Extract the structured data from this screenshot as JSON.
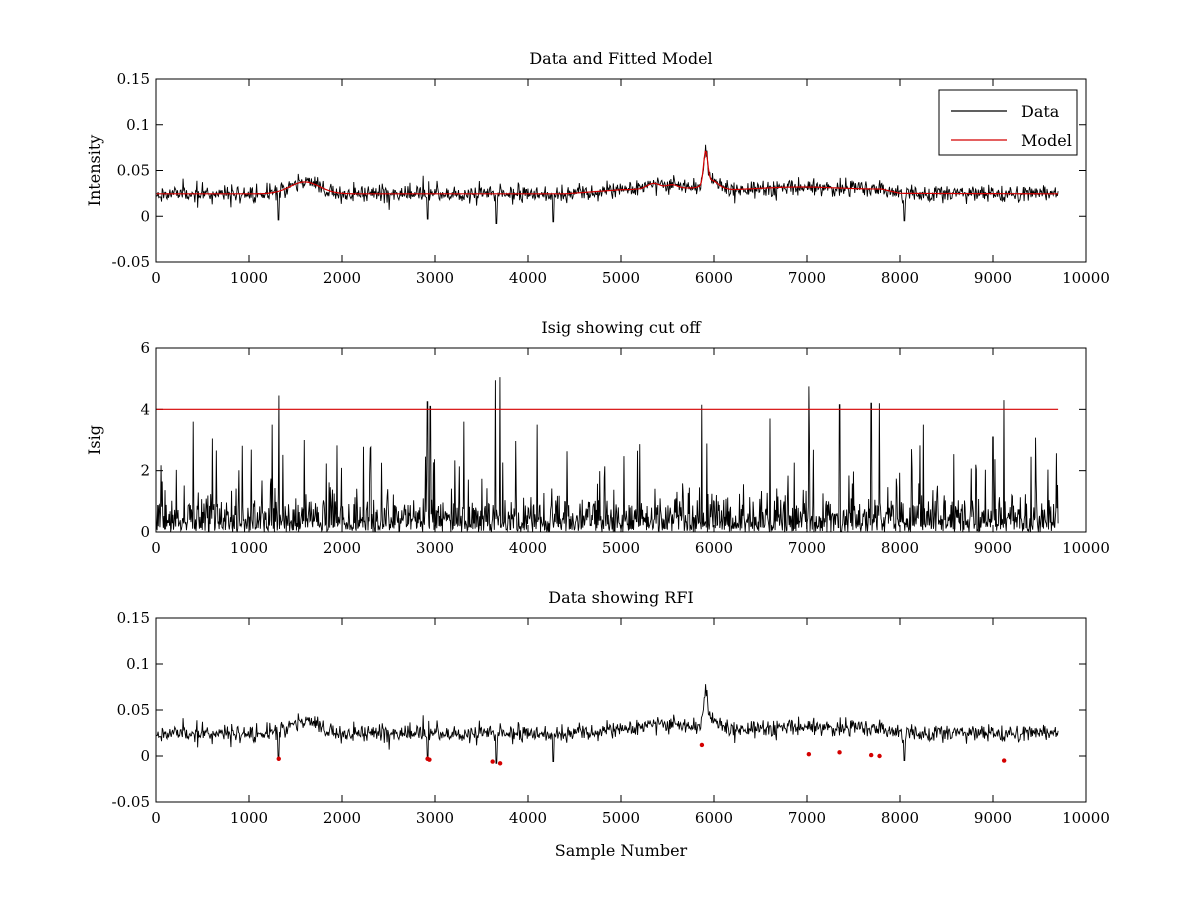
{
  "chart_data": [
    {
      "id": "top",
      "type": "line",
      "title": "Data and Fitted Model",
      "xlabel": "",
      "ylabel": "Intensity",
      "xlim": [
        0,
        10000
      ],
      "ylim": [
        -0.05,
        0.15
      ],
      "xticks": [
        0,
        1000,
        2000,
        3000,
        4000,
        5000,
        6000,
        7000,
        8000,
        9000,
        10000
      ],
      "xtick_labels": [
        "0",
        "1000",
        "2000",
        "3000",
        "4000",
        "5000",
        "6000",
        "7000",
        "8000",
        "9000",
        "10000"
      ],
      "yticks": [
        -0.05,
        0,
        0.05,
        0.1,
        0.15
      ],
      "ytick_labels": [
        "-0.05",
        "0",
        "0.05",
        "0.1",
        "0.15"
      ],
      "legend": {
        "placement": "top-right",
        "entries": [
          {
            "label": "Data",
            "color": "#000000"
          },
          {
            "label": "Model",
            "color": "#d40000"
          }
        ]
      },
      "series": [
        {
          "name": "Data",
          "color": "#000000",
          "style": "noisy-line",
          "x_range": [
            0,
            9700
          ],
          "baseline_ref": "model",
          "noise_amplitude": 0.0085,
          "points": 1300,
          "seed": 11,
          "dips": [
            [
              1320,
              -0.004
            ],
            [
              2920,
              -0.003
            ],
            [
              3660,
              -0.008
            ],
            [
              4270,
              -0.006
            ],
            [
              8050,
              -0.005
            ]
          ]
        },
        {
          "name": "Model",
          "color": "#d40000",
          "style": "line",
          "baseline_ref": "model"
        }
      ],
      "model_baseline": {
        "base": 0.0245,
        "slope_segments": [
          [
            0,
            0.0245
          ],
          [
            4400,
            0.0245
          ],
          [
            5000,
            0.029
          ],
          [
            5800,
            0.031
          ],
          [
            6000,
            0.031
          ],
          [
            6200,
            0.0285
          ],
          [
            7800,
            0.0295
          ],
          [
            8000,
            0.025
          ],
          [
            9700,
            0.0245
          ]
        ],
        "bumps": [
          {
            "center": 1600,
            "width": 160,
            "height": 0.013
          },
          {
            "center": 5350,
            "width": 70,
            "height": 0.006
          },
          {
            "center": 5550,
            "width": 60,
            "height": 0.004
          },
          {
            "center": 5910,
            "width": 22,
            "height": 0.035
          },
          {
            "center": 5970,
            "width": 70,
            "height": 0.008
          },
          {
            "center": 6900,
            "width": 400,
            "height": 0.003
          }
        ]
      }
    },
    {
      "id": "middle",
      "type": "line",
      "title": "Isig showing cut off",
      "xlabel": "",
      "ylabel": "Isig",
      "xlim": [
        0,
        10000
      ],
      "ylim": [
        0,
        6
      ],
      "xticks": [
        0,
        1000,
        2000,
        3000,
        4000,
        5000,
        6000,
        7000,
        8000,
        9000,
        10000
      ],
      "xtick_labels": [
        "0",
        "1000",
        "2000",
        "3000",
        "4000",
        "5000",
        "6000",
        "7000",
        "8000",
        "9000",
        "10000"
      ],
      "yticks": [
        0,
        2,
        4,
        6
      ],
      "ytick_labels": [
        "0",
        "2",
        "4",
        "6"
      ],
      "series": [
        {
          "name": "Isig",
          "color": "#000000",
          "style": "spiky",
          "x_range": [
            0,
            9700
          ],
          "points": 1600,
          "seed": 29,
          "typical_max": 1.6,
          "spikes": [
            [
              1320,
              4.45
            ],
            [
              2920,
              4.25
            ],
            [
              2950,
              4.1
            ],
            [
              3650,
              4.95
            ],
            [
              3700,
              5.05
            ],
            [
              5870,
              4.15
            ],
            [
              7020,
              4.75
            ],
            [
              7350,
              4.15
            ],
            [
              7690,
              4.2
            ],
            [
              7780,
              4.2
            ],
            [
              9120,
              4.3
            ],
            [
              1250,
              3.5
            ],
            [
              3310,
              3.6
            ],
            [
              4100,
              3.5
            ],
            [
              6600,
              3.7
            ],
            [
              8250,
              3.5
            ],
            [
              9000,
              3.1
            ],
            [
              400,
              3.6
            ]
          ]
        },
        {
          "name": "Cut off",
          "color": "#d40000",
          "style": "hline",
          "x_range": [
            0,
            9700
          ],
          "y": 4
        }
      ]
    },
    {
      "id": "bottom",
      "type": "line",
      "title": "Data showing RFI",
      "xlabel": "Sample Number",
      "ylabel": "",
      "xlim": [
        0,
        10000
      ],
      "ylim": [
        -0.05,
        0.15
      ],
      "xticks": [
        0,
        1000,
        2000,
        3000,
        4000,
        5000,
        6000,
        7000,
        8000,
        9000,
        10000
      ],
      "xtick_labels": [
        "0",
        "1000",
        "2000",
        "3000",
        "4000",
        "5000",
        "6000",
        "7000",
        "8000",
        "9000",
        "10000"
      ],
      "yticks": [
        -0.05,
        0,
        0.05,
        0.1,
        0.15
      ],
      "ytick_labels": [
        "-0.05",
        "0",
        "0.05",
        "0.1",
        "0.15"
      ],
      "series": [
        {
          "name": "Data",
          "color": "#000000",
          "style": "noisy-line",
          "x_range": [
            0,
            9700
          ],
          "baseline_ref": "model",
          "noise_amplitude": 0.0085,
          "points": 1300,
          "seed": 11,
          "dips": [
            [
              1320,
              -0.004
            ],
            [
              2920,
              -0.003
            ],
            [
              3660,
              -0.008
            ],
            [
              4270,
              -0.006
            ],
            [
              8050,
              -0.005
            ]
          ]
        },
        {
          "name": "RFI",
          "color": "#d40000",
          "style": "markers",
          "points": [
            [
              1320,
              -0.003
            ],
            [
              2920,
              -0.003
            ],
            [
              2940,
              -0.004
            ],
            [
              3620,
              -0.006
            ],
            [
              3700,
              -0.008
            ],
            [
              5870,
              0.012
            ],
            [
              7020,
              0.002
            ],
            [
              7350,
              0.004
            ],
            [
              7690,
              0.001
            ],
            [
              7780,
              0.0
            ],
            [
              9120,
              -0.005
            ]
          ]
        }
      ]
    }
  ]
}
